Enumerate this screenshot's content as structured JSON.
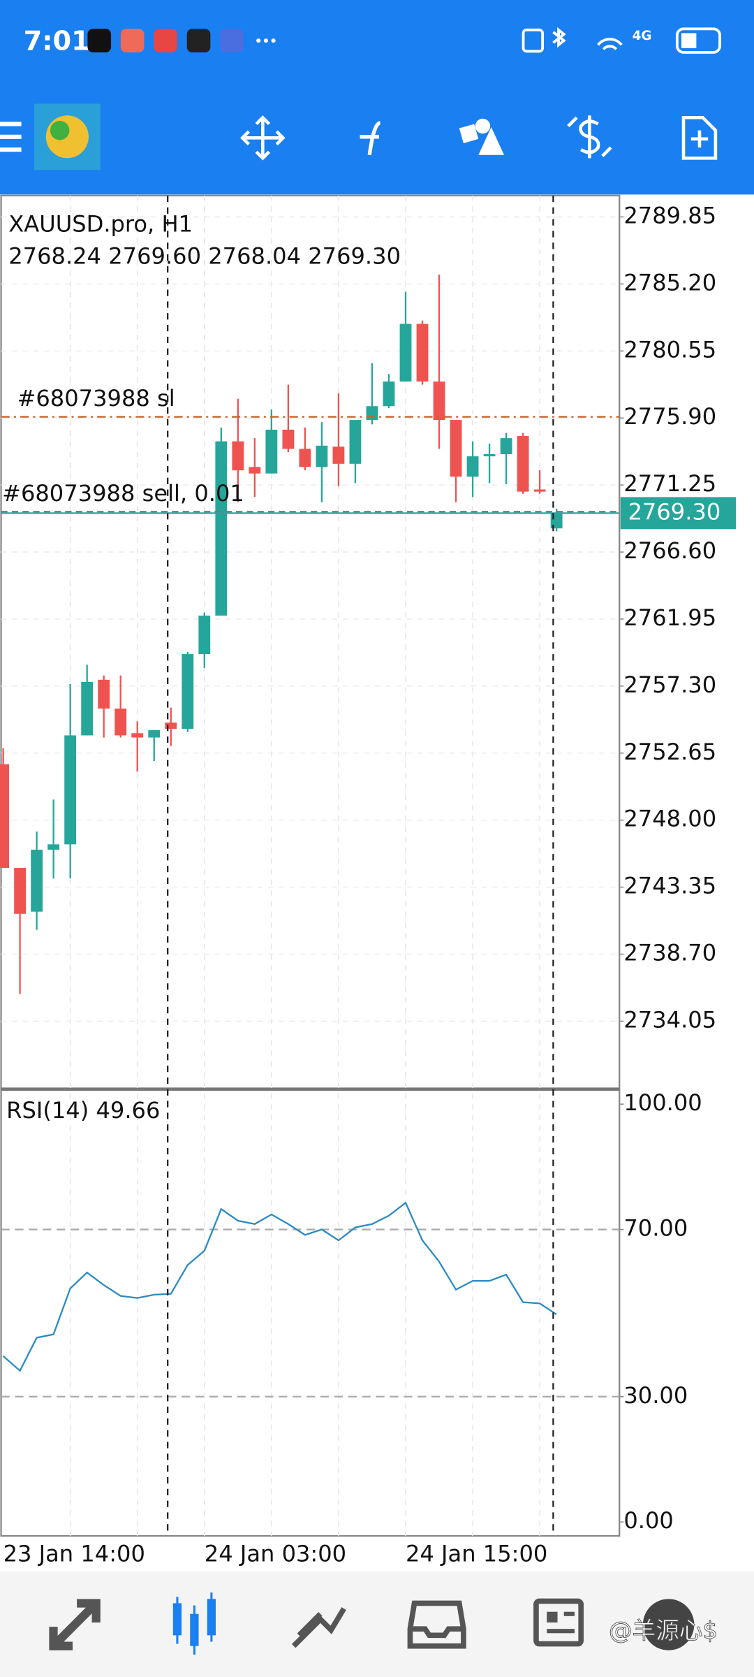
{
  "status_bar": {
    "time": "7:01",
    "network": "4G"
  },
  "chart_data": [
    {
      "type": "candlestick",
      "title": "XAUUSD.pro, H1",
      "subtitle": "2768.24 2769.60 2768.04 2769.30",
      "categories": [
        "23 Jan 14:00",
        null,
        null,
        null,
        null,
        null,
        null,
        null,
        null,
        null,
        null,
        null,
        "24 Jan 03:00",
        null,
        null,
        null,
        null,
        null,
        null,
        null,
        null,
        null,
        null,
        null,
        "24 Jan 15:00",
        null,
        null,
        null,
        null,
        null,
        null,
        null,
        null,
        null
      ],
      "open": [
        2751.88,
        2744.69,
        2741.65,
        2745.95,
        2746.32,
        2753.88,
        2757.74,
        2755.74,
        2754.03,
        2753.73,
        2754.77,
        2754.33,
        2759.52,
        2762.19,
        2774.28,
        2772.5,
        2772.05,
        2775.09,
        2773.76,
        2772.5,
        2773.91,
        2772.72,
        2775.76,
        2776.72,
        2778.43,
        2782.43,
        2778.43,
        2775.76,
        2771.83,
        2773.24,
        2773.39,
        2774.65,
        2770.94,
        2768.24
      ],
      "high": [
        2752.99,
        2744.69,
        2747.21,
        2749.43,
        2757.44,
        2758.78,
        2758.04,
        2758.04,
        2754.85,
        2754.25,
        2755.81,
        2759.67,
        2762.41,
        2775.24,
        2777.24,
        2774.5,
        2776.5,
        2778.21,
        2775.24,
        2775.61,
        2777.61,
        2775.76,
        2779.69,
        2778.95,
        2784.66,
        2782.66,
        2785.85,
        2775.76,
        2774.28,
        2774.13,
        2774.87,
        2774.87,
        2772.27,
        2769.6
      ],
      "low": [
        2744.69,
        2735.94,
        2740.39,
        2743.95,
        2743.95,
        2753.88,
        2753.73,
        2753.73,
        2751.36,
        2752.1,
        2753.14,
        2754.11,
        2758.55,
        2762.19,
        2770.05,
        2770.42,
        2772.05,
        2773.53,
        2772.27,
        2770.05,
        2771.16,
        2771.38,
        2775.46,
        2776.58,
        2778.43,
        2778.21,
        2773.76,
        2770.05,
        2770.42,
        2771.38,
        2771.31,
        2770.64,
        2770.64,
        2768.04
      ],
      "close": [
        2744.69,
        2741.5,
        2745.95,
        2746.32,
        2753.88,
        2757.59,
        2755.74,
        2753.88,
        2753.73,
        2754.25,
        2754.33,
        2759.52,
        2762.19,
        2774.28,
        2772.27,
        2772.05,
        2775.09,
        2773.76,
        2772.5,
        2773.98,
        2772.72,
        2775.76,
        2776.72,
        2778.43,
        2782.43,
        2778.43,
        2775.76,
        2771.83,
        2773.24,
        2773.39,
        2774.5,
        2770.79,
        2770.79,
        2769.3
      ],
      "up_color": "#26a69a",
      "down_color": "#ef5350",
      "ylim": [
        2729.41,
        2791.33
      ],
      "yticks": [
        2789.85,
        {
          "value": 2785.2,
          "label": "2785.20"
        },
        2780.55,
        {
          "value": 2775.9,
          "label": "2775.90"
        },
        2771.25,
        {
          "value": 2766.6,
          "label": "2766.60"
        },
        2761.95,
        {
          "value": 2757.3,
          "label": "2757.30"
        },
        2752.65,
        {
          "value": 2748,
          "label": "2748.00"
        },
        2743.35,
        {
          "value": 2738.7,
          "label": "2738.70"
        },
        2734.05
      ],
      "grid": true,
      "last_price": {
        "value": 2769.3,
        "label": "2769.30"
      },
      "annotations": [
        {
          "label": "#68073988 sl",
          "value": 2775.98,
          "color": "#c8642d"
        },
        {
          "label": "#68073988 sell, 0.01",
          "value": 2769.4,
          "color": "#777777"
        }
      ]
    },
    {
      "type": "line",
      "title": "RSI(14) 49.66",
      "color": "#2a8bc4",
      "values": [
        39.7,
        36.2,
        44.1,
        44.9,
        55.9,
        59.7,
        56.7,
        54.1,
        53.6,
        54.4,
        54.6,
        61.5,
        64.9,
        74.9,
        72.1,
        71.3,
        73.6,
        71.3,
        68.7,
        70.0,
        67.4,
        70.5,
        71.3,
        73.3,
        76.4,
        67.4,
        62.3,
        55.6,
        57.7,
        57.7,
        59.2,
        52.6,
        52.3,
        49.66
      ],
      "ylim": [
        -3.33,
        103.33
      ],
      "yticks": [
        {
          "value": 100,
          "label": "100.00"
        },
        {
          "value": 70,
          "label": "70.00"
        },
        {
          "value": 30,
          "label": "30.00"
        },
        {
          "value": 0,
          "label": "0.00"
        }
      ],
      "levels": [
        70,
        30
      ]
    }
  ],
  "watermark": "@羊源心$"
}
